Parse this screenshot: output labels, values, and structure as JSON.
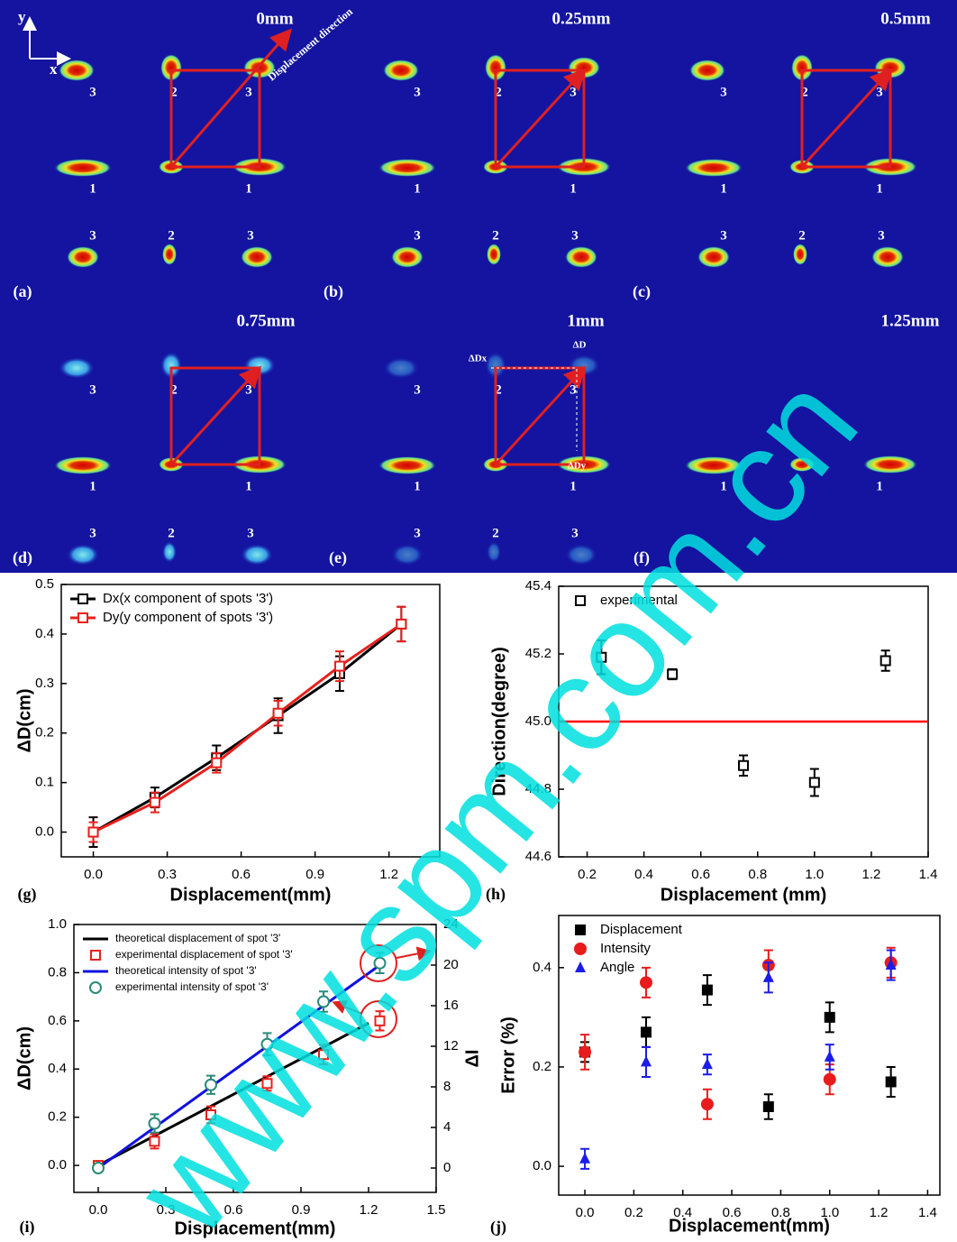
{
  "figure": {
    "panels": [
      {
        "title": "0mm",
        "label": "(a)",
        "spots": [
          "3",
          "2",
          "3",
          "1",
          "1",
          "3",
          "2",
          "3"
        ]
      },
      {
        "title": "0.25mm",
        "label": "(b)",
        "spots": [
          "3",
          "2",
          "3",
          "1",
          "1",
          "3",
          "2",
          "3"
        ]
      },
      {
        "title": "0.5mm",
        "label": "(c)",
        "spots": [
          "3",
          "2",
          "3",
          "1",
          "1",
          "3",
          "2",
          "3"
        ]
      },
      {
        "title": "0.75mm",
        "label": "(d)",
        "spots": [
          "3",
          "2",
          "3",
          "1",
          "1",
          "3",
          "2",
          "3"
        ]
      },
      {
        "title": "1mm",
        "label": "(e)",
        "spots": [
          "3",
          "2",
          "3",
          "1",
          "1",
          "3",
          "2",
          "3"
        ]
      },
      {
        "title": "1.25mm",
        "label": "(f)",
        "spots": [
          "1",
          "1"
        ]
      }
    ],
    "axis_labels": [
      "y",
      "x"
    ],
    "direction_label": "Displacement direction",
    "delta_labels": [
      "ΔDx",
      "ΔD",
      "ΔDy"
    ]
  },
  "watermark": "www.spm.com.cn",
  "chart_data": [
    {
      "type": "line",
      "panel_label": "(g)",
      "xlabel": "Displacement(mm)",
      "ylabel": "ΔD(cm)",
      "xlim": [
        -0.13,
        1.406
      ],
      "ylim": [
        -0.05,
        0.5
      ],
      "xticks": [
        {
          "value": 0,
          "label": "0.0"
        },
        0.3,
        0.6,
        0.9,
        1.2
      ],
      "yticks": [
        {
          "value": 0,
          "label": "0.0"
        },
        0.1,
        0.2,
        0.3,
        0.4,
        0.5
      ],
      "legend": "upper left",
      "series": [
        {
          "name": "Dx(x component of spots '3')",
          "color": "#000000",
          "marker": "open-square",
          "line": true,
          "x": [
            0,
            0.25,
            0.5,
            0.75,
            1,
            1.25
          ],
          "values": [
            0,
            0.07,
            0.15,
            0.235,
            0.32,
            0.42
          ],
          "errors": [
            0.03,
            0.02,
            0.025,
            0.035,
            0.035,
            0.035
          ]
        },
        {
          "name": "Dy(y component of spots '3')",
          "color": "#e8201c",
          "marker": "open-square",
          "line": true,
          "x": [
            0,
            0.25,
            0.5,
            0.75,
            1,
            1.25
          ],
          "values": [
            0,
            0.06,
            0.14,
            0.24,
            0.335,
            0.42
          ],
          "errors": [
            0.02,
            0.02,
            0.02,
            0.025,
            0.03,
            0.035
          ]
        }
      ]
    },
    {
      "type": "scatter",
      "panel_label": "(h)",
      "xlabel": "Displacement (mm)",
      "ylabel": "Direction(degree)",
      "xlim": [
        0.1,
        1.4
      ],
      "ylim": [
        44.6,
        45.4
      ],
      "xticks": [
        0.2,
        0.4,
        0.6,
        0.8,
        {
          "value": 1,
          "label": "1.0"
        },
        1.2,
        1.4
      ],
      "yticks": [
        44.6,
        44.8,
        {
          "value": 45,
          "label": "45.0"
        },
        45.2,
        45.4
      ],
      "hline": {
        "value": 45,
        "color": "#ff0000"
      },
      "legend": "upper left",
      "series": [
        {
          "name": "experimental",
          "color": "#000000",
          "marker": "open-square",
          "line": false,
          "x": [
            0.25,
            0.5,
            0.75,
            1,
            1.25
          ],
          "values": [
            45.19,
            45.14,
            44.87,
            44.82,
            45.18
          ],
          "errors": [
            0.05,
            0.015,
            0.03,
            0.04,
            0.03
          ]
        }
      ]
    },
    {
      "type": "line",
      "panel_label": "(i)",
      "xlabel": "Displacement(mm)",
      "ylabel": "ΔD(cm)",
      "y2label": "ΔI",
      "xlim": [
        -0.108,
        1.5
      ],
      "ylim": [
        -0.112,
        1.0
      ],
      "y2lim": [
        -2.4,
        24
      ],
      "xticks": [
        {
          "value": 0,
          "label": "0.0"
        },
        0.3,
        0.6,
        0.9,
        1.2,
        1.5
      ],
      "yticks": [
        {
          "value": 0,
          "label": "0.0"
        },
        0.2,
        0.4,
        0.6,
        0.8,
        {
          "value": 1,
          "label": "1.0"
        }
      ],
      "y2ticks": [
        0,
        4,
        8,
        12,
        16,
        20,
        24
      ],
      "legend": "upper left",
      "series": [
        {
          "name": "theoretical displacement of spot '3'",
          "color": "#000000",
          "marker": "none",
          "line": true,
          "x": [
            0,
            1.2
          ],
          "values": [
            0,
            0.59
          ]
        },
        {
          "name": "experimental displacement of spot '3'",
          "color": "#e8201c",
          "marker": "open-square",
          "line": false,
          "x": [
            0,
            0.25,
            0.5,
            0.75,
            1,
            1.25
          ],
          "values": [
            0,
            0.1,
            0.21,
            0.34,
            0.46,
            0.6
          ],
          "errors": [
            0,
            0.03,
            0.035,
            0.03,
            0.04,
            0.04
          ]
        },
        {
          "name": "theoretical intensity of spot '3'",
          "color": "#1010e0",
          "marker": "none",
          "line": true,
          "axis": "y2",
          "x": [
            0,
            1.25
          ],
          "values": [
            0,
            20
          ]
        },
        {
          "name": "experimental intensity of spot '3'",
          "color": "#2a8a7a",
          "marker": "open-circle",
          "line": false,
          "axis": "y2",
          "x": [
            0,
            0.25,
            0.5,
            0.75,
            1,
            1.25
          ],
          "values": [
            0,
            4.4,
            8.2,
            12.2,
            16.4,
            20.2
          ],
          "errors": [
            0,
            0.9,
            0.9,
            1.1,
            1,
            1
          ]
        }
      ]
    },
    {
      "type": "scatter",
      "panel_label": "(j)",
      "xlabel": "Displacement(mm)",
      "ylabel": "Error (%)",
      "xlim": [
        -0.107,
        1.45
      ],
      "ylim": [
        -0.058,
        0.505
      ],
      "xticks": [
        {
          "value": 0,
          "label": "0.0"
        },
        0.2,
        0.4,
        0.6,
        0.8,
        {
          "value": 1,
          "label": "1.0"
        },
        1.2,
        1.4
      ],
      "yticks": [
        {
          "value": 0,
          "label": "0.0"
        },
        0.2,
        0.4
      ],
      "legend": "upper left",
      "series": [
        {
          "name": "Displacement",
          "color": "#000000",
          "marker": "square",
          "line": false,
          "x": [
            0,
            0.25,
            0.5,
            0.75,
            1,
            1.25
          ],
          "values": [
            0.23,
            0.27,
            0.355,
            0.12,
            0.3,
            0.17
          ],
          "errors": [
            0.02,
            0.03,
            0.03,
            0.025,
            0.03,
            0.03
          ]
        },
        {
          "name": "Intensity",
          "color": "#e81c1c",
          "marker": "circle",
          "line": false,
          "x": [
            0,
            0.25,
            0.5,
            0.75,
            1,
            1.25
          ],
          "values": [
            0.23,
            0.37,
            0.125,
            0.405,
            0.175,
            0.41
          ],
          "errors": [
            0.035,
            0.03,
            0.03,
            0.03,
            0.03,
            0.03
          ]
        },
        {
          "name": "Angle",
          "color": "#1c1ce8",
          "marker": "triangle",
          "line": false,
          "x": [
            0,
            0.25,
            0.5,
            0.75,
            1,
            1.25
          ],
          "values": [
            0.015,
            0.21,
            0.205,
            0.38,
            0.22,
            0.405
          ],
          "errors": [
            0.02,
            0.03,
            0.02,
            0.03,
            0.025,
            0.03
          ]
        }
      ]
    }
  ]
}
